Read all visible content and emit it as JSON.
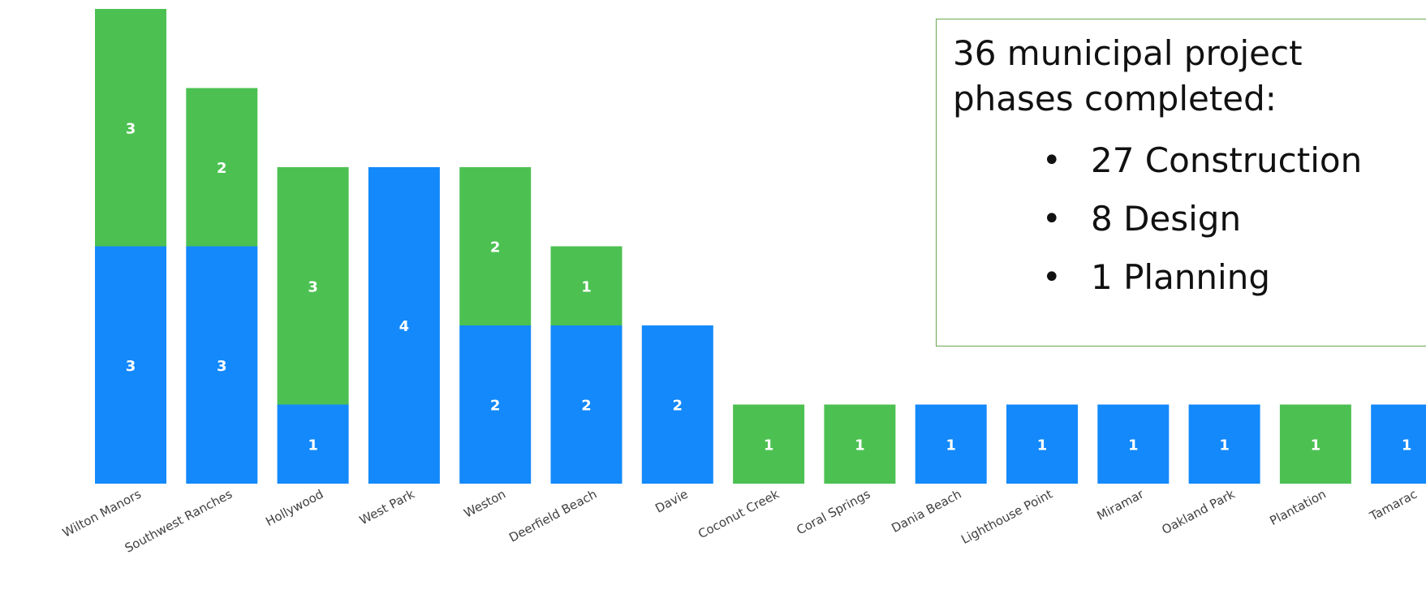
{
  "chart_data": {
    "type": "bar",
    "stacked": true,
    "categories": [
      "Wilton Manors",
      "Southwest Ranches",
      "Hollywood",
      "West Park",
      "Weston",
      "Deerfield Beach",
      "Davie",
      "Coconut Creek",
      "Coral Springs",
      "Dania Beach",
      "Lighthouse Point",
      "Miramar",
      "Oakland Park",
      "Plantation",
      "Tamarac"
    ],
    "series": [
      {
        "color": "#1389fb",
        "values": [
          3,
          3,
          1,
          4,
          2,
          2,
          2,
          0,
          0,
          1,
          1,
          1,
          1,
          0,
          1
        ]
      },
      {
        "color": "#4cc152",
        "values": [
          3,
          2,
          3,
          0,
          2,
          1,
          0,
          1,
          1,
          0,
          0,
          0,
          0,
          1,
          0
        ]
      }
    ],
    "ylim": [
      0,
      6
    ],
    "grid": false,
    "legend": "none"
  },
  "callout": {
    "heading": "36 municipal project phases completed:",
    "items": [
      "27 Construction",
      "8 Design",
      "1 Planning"
    ],
    "bullet": "•"
  },
  "colors": {
    "callout_border": "#6aa84f"
  }
}
